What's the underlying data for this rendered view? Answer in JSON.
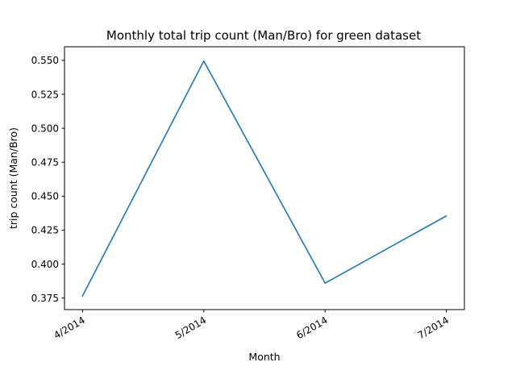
{
  "chart_data": {
    "type": "line",
    "title": "Monthly total trip count (Man/Bro) for green dataset",
    "xlabel": "Month",
    "ylabel": "trip count (Man/Bro)",
    "categories": [
      "4/2014",
      "5/2014",
      "6/2014",
      "7/2014"
    ],
    "series": [
      {
        "values": [
          0.3765,
          0.5495,
          0.386,
          0.4355
        ]
      }
    ],
    "ylim": [
      0.3665,
      0.56
    ],
    "yticks": [
      0.375,
      0.4,
      0.425,
      0.45,
      0.475,
      0.5,
      0.525,
      0.55
    ],
    "ytick_labels": [
      "0.375",
      "0.400",
      "0.425",
      "0.450",
      "0.475",
      "0.500",
      "0.525",
      "0.550"
    ],
    "grid": false,
    "legend": "none",
    "line_color": "#1f77b4"
  }
}
